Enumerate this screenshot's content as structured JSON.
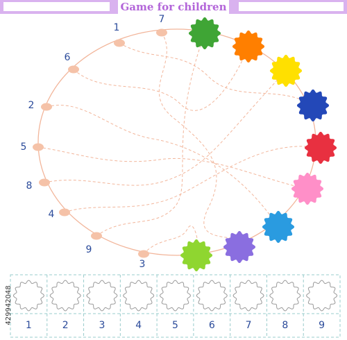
{
  "header": {
    "title": "Game for children"
  },
  "circle_labels": [
    7,
    1,
    6,
    2,
    5,
    8,
    4,
    9,
    3
  ],
  "answer_boxes": [
    1,
    2,
    3,
    4,
    5,
    6,
    7,
    8,
    9
  ],
  "watermark_id": "429942048"
}
